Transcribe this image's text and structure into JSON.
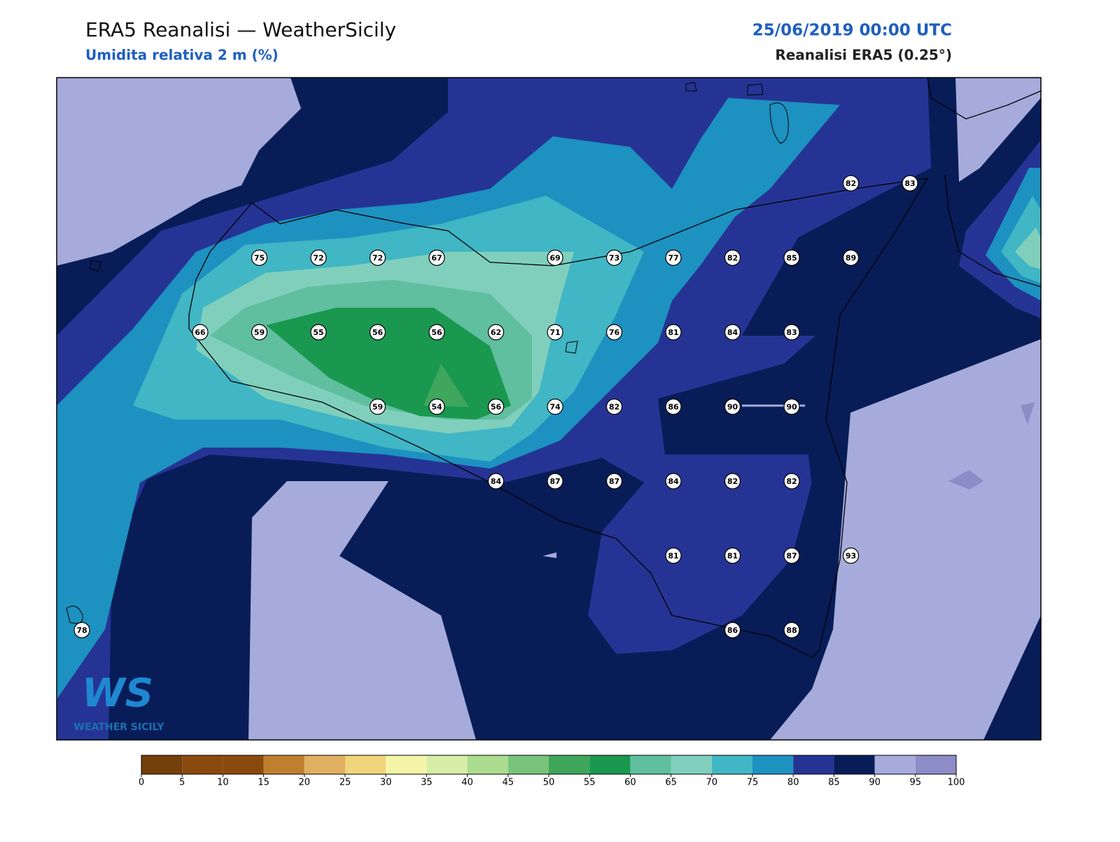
{
  "header": {
    "title": "ERA5 Reanalisi — WeatherSicily",
    "subtitle": "Umidita relativa 2 m (%)",
    "datetime": "25/06/2019 00:00 UTC",
    "source": "Reanalisi ERA5 (0.25°)"
  },
  "map": {
    "grid": [
      [
        null,
        null,
        null,
        null,
        null,
        null,
        null,
        null,
        null,
        null,
        null,
        null,
        null,
        82,
        83
      ],
      [
        null,
        null,
        null,
        75,
        72,
        72,
        67,
        null,
        69,
        73,
        77,
        82,
        85,
        89,
        null
      ],
      [
        null,
        null,
        66,
        59,
        55,
        56,
        56,
        62,
        71,
        76,
        81,
        84,
        83,
        null,
        null
      ],
      [
        null,
        null,
        null,
        null,
        null,
        59,
        54,
        56,
        74,
        82,
        86,
        90,
        90,
        null,
        null
      ],
      [
        null,
        null,
        null,
        null,
        null,
        null,
        null,
        84,
        87,
        87,
        84,
        82,
        82,
        null,
        null
      ],
      [
        null,
        null,
        null,
        null,
        null,
        null,
        null,
        null,
        null,
        null,
        81,
        81,
        87,
        93,
        null
      ],
      [
        78,
        null,
        null,
        null,
        null,
        null,
        null,
        null,
        null,
        null,
        null,
        86,
        88,
        null,
        null
      ]
    ]
  },
  "colorbar": {
    "ticks": [
      0,
      5,
      10,
      15,
      20,
      25,
      30,
      35,
      40,
      45,
      50,
      55,
      60,
      65,
      70,
      75,
      80,
      85,
      90,
      95,
      100
    ],
    "colors": [
      "#733f0a",
      "#8b4a0d",
      "#8b4a0d",
      "#bf7f2f",
      "#e0b060",
      "#f0d57a",
      "#f5f5a8",
      "#d7eea7",
      "#acdc8f",
      "#78c47a",
      "#3fa65c",
      "#1a9850",
      "#5fbf9e",
      "#80cfbd",
      "#41b6c4",
      "#1d91c0",
      "#253494",
      "#081d58",
      "#a6abdb",
      "#8e8cc7"
    ]
  },
  "logo": {
    "mark": "WS",
    "name": "WEATHER SICILY"
  }
}
